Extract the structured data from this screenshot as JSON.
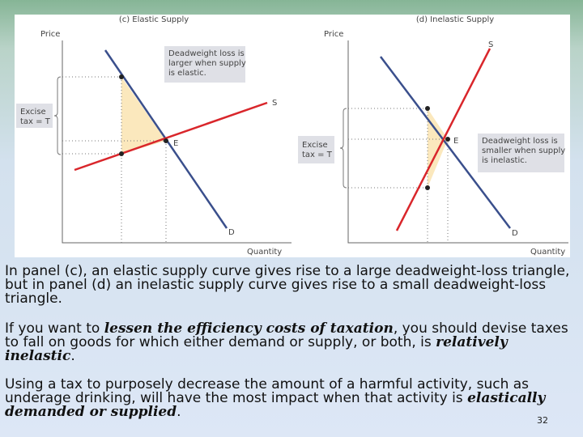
{
  "panels": [
    {
      "title": "(c) Elastic Supply",
      "y_axis": "Price",
      "x_axis": "Quantity",
      "supply": "S",
      "demand": "D",
      "equilibrium": "E",
      "tax_label": [
        "Excise",
        "tax = T"
      ],
      "callout": [
        "Deadweight loss is",
        "larger when supply",
        "is elastic."
      ]
    },
    {
      "title": "(d) Inelastic Supply",
      "y_axis": "Price",
      "x_axis": "Quantity",
      "supply": "S",
      "demand": "D",
      "equilibrium": "E",
      "tax_label": [
        "Excise",
        "tax = T"
      ],
      "callout": [
        "Deadweight loss is",
        "smaller when supply",
        "is inelastic."
      ]
    }
  ],
  "paragraphs": [
    [
      "In panel (c), an elastic supply curve gives rise to a large deadweight-loss triangle, but in panel (d) an inelastic supply curve gives rise to a small deadweight-loss triangle."
    ],
    [
      "If you want to ",
      "lessen the efficiency costs of taxation",
      ", you should devise taxes to fall on goods for which either demand or supply, or both, is ",
      "relatively inelastic",
      "."
    ],
    [
      "Using a tax to purposely decrease the amount of a harmful activity, such as underage drinking, will have the most impact when that activity is ",
      "elastically demanded or supplied",
      "."
    ]
  ],
  "page_number": "32"
}
